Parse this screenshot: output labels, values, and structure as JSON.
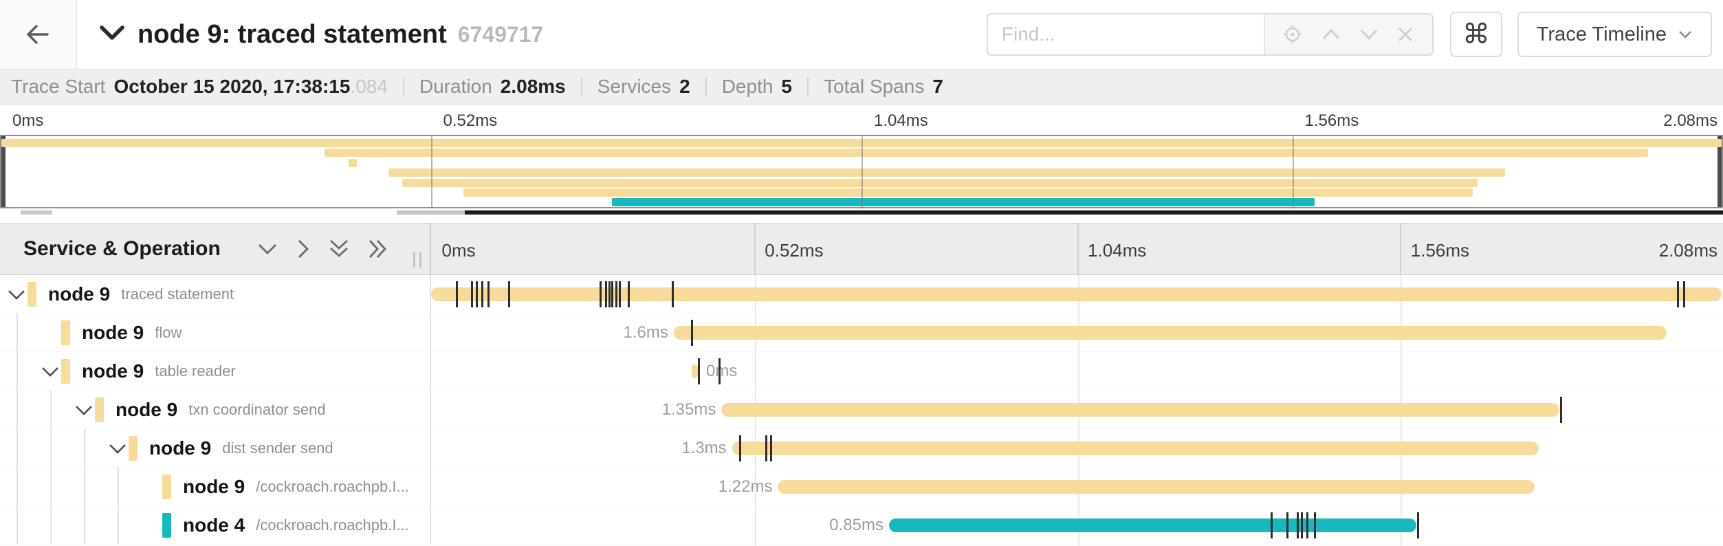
{
  "header": {
    "title": "node 9: traced statement",
    "trace_id": "6749717",
    "find_placeholder": "Find...",
    "keyboard_shortcut_symbol": "⌘",
    "view_selector_label": "Trace Timeline",
    "icons": [
      "back-arrow",
      "collapse-chevron-down",
      "locate-target",
      "prev-chevron-up",
      "next-chevron-down",
      "clear-x",
      "dropdown-chevron"
    ]
  },
  "summary": {
    "items": [
      {
        "label": "Trace Start",
        "value": "October 15 2020, 17:38:15",
        "muted_suffix": ".084"
      },
      {
        "label": "Duration",
        "value": "2.08ms",
        "muted_suffix": ""
      },
      {
        "label": "Services",
        "value": "2",
        "muted_suffix": ""
      },
      {
        "label": "Depth",
        "value": "5",
        "muted_suffix": ""
      },
      {
        "label": "Total Spans",
        "value": "7",
        "muted_suffix": ""
      }
    ]
  },
  "minimap": {
    "axis_ticks": [
      "0ms",
      "0.52ms",
      "1.04ms",
      "1.56ms",
      "2.08ms"
    ]
  },
  "timeline": {
    "left_header": "Service & Operation",
    "axis_ticks": [
      "0ms",
      "0.52ms",
      "1.04ms",
      "1.56ms",
      "2.08ms"
    ],
    "total_duration_ms": 2.08,
    "controls": [
      "collapse-one-chevron-down",
      "expand-one-chevron-right",
      "collapse-all-double-chevron-down",
      "expand-all-double-chevron-right"
    ]
  },
  "colors": {
    "span_default": "#f7db9b",
    "span_alt": "#17b8be",
    "tick_mark": "#2d2d2d"
  },
  "spans": [
    {
      "service": "node 9",
      "operation": "traced statement",
      "depth": 0,
      "has_children": true,
      "color": "#f7db9b",
      "start_ms": 0,
      "duration_ms": 2.08,
      "duration_label": "",
      "label_side": "none",
      "log_ticks_ms": [
        0.042,
        0.066,
        0.074,
        0.083,
        0.092,
        0.126,
        0.273,
        0.282,
        0.288,
        0.292,
        0.299,
        0.304,
        0.319,
        0.39,
        2.01,
        2.02
      ]
    },
    {
      "service": "node 9",
      "operation": "flow",
      "depth": 1,
      "has_children": false,
      "color": "#f7db9b",
      "start_ms": 0.391,
      "duration_ms": 1.6,
      "duration_label": "1.6ms",
      "label_side": "left",
      "log_ticks_ms": [
        0.42
      ]
    },
    {
      "service": "node 9",
      "operation": "table reader",
      "depth": 1,
      "has_children": true,
      "color": "#f7db9b",
      "start_ms": 0.42,
      "duration_ms": 0.01,
      "duration_label": "0ms",
      "label_side": "right",
      "log_ticks_ms": [
        0.432,
        0.465
      ]
    },
    {
      "service": "node 9",
      "operation": "txn coordinator send",
      "depth": 2,
      "has_children": true,
      "color": "#f7db9b",
      "start_ms": 0.468,
      "duration_ms": 1.35,
      "duration_label": "1.35ms",
      "label_side": "left",
      "log_ticks_ms": [
        1.821
      ]
    },
    {
      "service": "node 9",
      "operation": "dist sender send",
      "depth": 3,
      "has_children": true,
      "color": "#f7db9b",
      "start_ms": 0.485,
      "duration_ms": 1.3,
      "duration_label": "1.3ms",
      "label_side": "left",
      "log_ticks_ms": [
        0.498,
        0.54,
        0.548
      ]
    },
    {
      "service": "node 9",
      "operation": "/cockroach.roachpb.I...",
      "depth": 4,
      "has_children": false,
      "color": "#f7db9b",
      "start_ms": 0.559,
      "duration_ms": 1.22,
      "duration_label": "1.22ms",
      "label_side": "left",
      "log_ticks_ms": []
    },
    {
      "service": "node 4",
      "operation": "/cockroach.roachpb.I...",
      "depth": 4,
      "has_children": false,
      "color": "#17b8be",
      "start_ms": 0.738,
      "duration_ms": 0.85,
      "duration_label": "0.85ms",
      "label_side": "left",
      "log_ticks_ms": [
        1.355,
        1.38,
        1.397,
        1.403,
        1.412,
        1.425,
        1.591
      ]
    }
  ]
}
